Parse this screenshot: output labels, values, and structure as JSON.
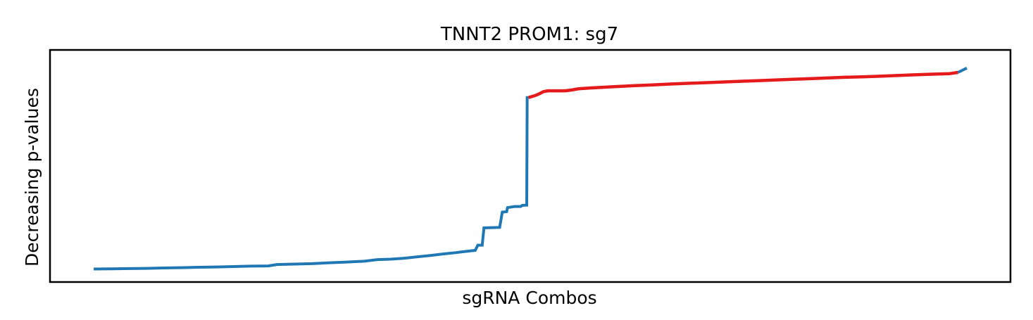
{
  "chart_data": {
    "type": "line",
    "title": "TNNT2 PROM1: sg7",
    "xlabel": "sgRNA Combos",
    "ylabel": "Decreasing p-values",
    "x_ticks_visible": false,
    "y_ticks_visible": false,
    "grid": false,
    "xlim": [
      0,
      1000
    ],
    "ylim": [
      0,
      1000
    ],
    "series": [
      {
        "color": "#1f77b4",
        "points": [
          [
            0,
            42
          ],
          [
            20,
            43
          ],
          [
            40,
            44
          ],
          [
            60,
            45
          ],
          [
            80,
            47
          ],
          [
            100,
            48
          ],
          [
            120,
            50
          ],
          [
            140,
            51
          ],
          [
            160,
            53
          ],
          [
            180,
            55
          ],
          [
            200,
            56
          ],
          [
            210,
            62
          ],
          [
            230,
            64
          ],
          [
            250,
            66
          ],
          [
            270,
            70
          ],
          [
            290,
            73
          ],
          [
            310,
            77
          ],
          [
            325,
            84
          ],
          [
            340,
            86
          ],
          [
            355,
            90
          ],
          [
            370,
            96
          ],
          [
            385,
            102
          ],
          [
            400,
            109
          ],
          [
            415,
            115
          ],
          [
            425,
            120
          ],
          [
            437,
            125
          ],
          [
            440,
            148
          ],
          [
            445,
            148
          ],
          [
            447,
            225
          ],
          [
            465,
            227
          ],
          [
            468,
            295
          ],
          [
            473,
            297
          ],
          [
            474,
            315
          ],
          [
            482,
            320
          ],
          [
            489,
            320
          ],
          [
            491,
            325
          ],
          [
            496,
            326
          ],
          [
            496.5,
            804
          ],
          [
            498,
            804
          ]
        ]
      },
      {
        "color": "#e41a1c",
        "points": [
          [
            498,
            804
          ],
          [
            505,
            812
          ],
          [
            510,
            820
          ],
          [
            515,
            830
          ],
          [
            520,
            834
          ],
          [
            540,
            834
          ],
          [
            548,
            838
          ],
          [
            555,
            843
          ],
          [
            570,
            847
          ],
          [
            585,
            850
          ],
          [
            600,
            853
          ],
          [
            620,
            857
          ],
          [
            640,
            860
          ],
          [
            660,
            864
          ],
          [
            680,
            867
          ],
          [
            700,
            870
          ],
          [
            720,
            873
          ],
          [
            740,
            876
          ],
          [
            760,
            879
          ],
          [
            780,
            882
          ],
          [
            800,
            885
          ],
          [
            820,
            888
          ],
          [
            840,
            891
          ],
          [
            860,
            894
          ],
          [
            880,
            896
          ],
          [
            900,
            899
          ],
          [
            920,
            902
          ],
          [
            940,
            905
          ],
          [
            960,
            908
          ],
          [
            980,
            910
          ],
          [
            990,
            916
          ]
        ]
      },
      {
        "color": "#1f77b4",
        "points": [
          [
            990,
            916
          ],
          [
            1000,
            935
          ]
        ]
      }
    ]
  }
}
